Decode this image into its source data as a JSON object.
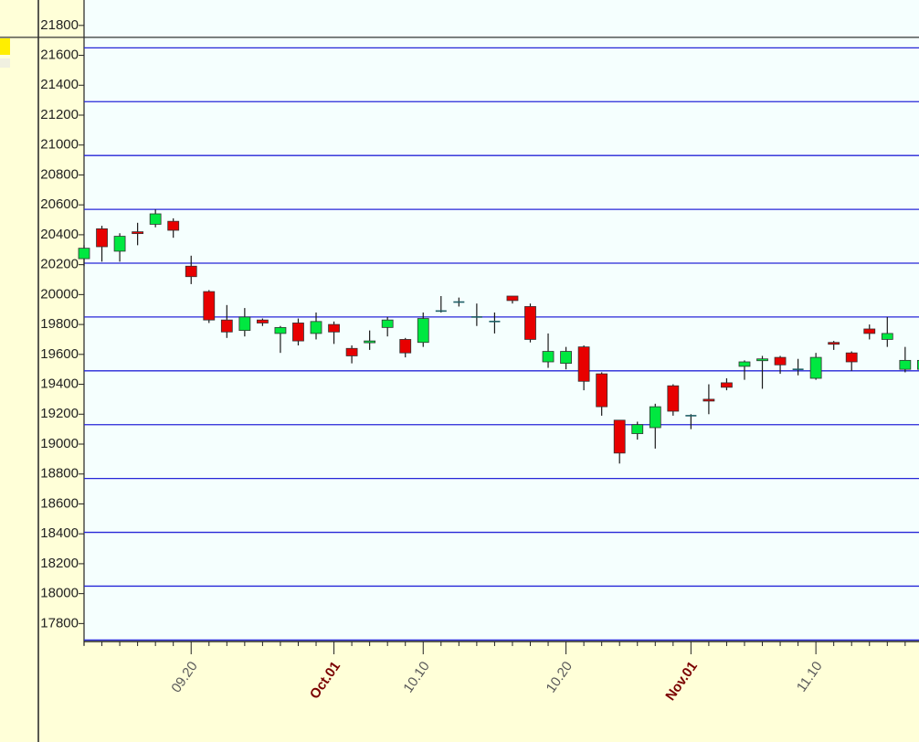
{
  "chart_data": {
    "type": "candlestick",
    "categories": [
      null,
      null,
      null,
      null,
      null,
      null,
      "09.20",
      null,
      null,
      null,
      null,
      null,
      null,
      null,
      "Oct.01",
      null,
      null,
      null,
      null,
      "10.10",
      null,
      null,
      null,
      null,
      null,
      null,
      null,
      "10.20",
      null,
      null,
      null,
      null,
      null,
      null,
      "Nov.01",
      null,
      null,
      null,
      null,
      null,
      null,
      "11.10",
      null,
      null,
      null,
      null,
      null,
      null
    ],
    "category_colors": [
      null,
      null,
      null,
      null,
      null,
      null,
      "#5a5a5a",
      null,
      null,
      null,
      null,
      null,
      null,
      null,
      "#7a0000",
      null,
      null,
      null,
      null,
      "#5a5a5a",
      null,
      null,
      null,
      null,
      null,
      null,
      null,
      "#5a5a5a",
      null,
      null,
      null,
      null,
      null,
      null,
      "#7a0000",
      null,
      null,
      null,
      null,
      null,
      null,
      "#5a5a5a",
      null,
      null,
      null,
      null,
      null,
      null
    ],
    "open": [
      20240,
      20440,
      20290,
      20420,
      20470,
      20490,
      20190,
      20020,
      19830,
      19760,
      19830,
      19740,
      19810,
      19740,
      19800,
      19640,
      19680,
      19780,
      19700,
      19680,
      19890,
      19950,
      19850,
      19820,
      19990,
      19920,
      19550,
      19540,
      19650,
      19470,
      19160,
      19070,
      19110,
      19390,
      19190,
      19300,
      19410,
      19520,
      19560,
      19580,
      19500,
      19440,
      19680,
      19610,
      19770,
      19700,
      19500,
      19500
    ],
    "high": [
      20330,
      20460,
      20410,
      20480,
      20570,
      20510,
      20260,
      20030,
      19930,
      19910,
      19840,
      19790,
      19840,
      19880,
      19820,
      19660,
      19760,
      19850,
      19710,
      19880,
      19990,
      19980,
      19940,
      19880,
      19990,
      19940,
      19740,
      19650,
      19660,
      19480,
      19160,
      19150,
      19270,
      19400,
      19200,
      19400,
      19440,
      19560,
      19590,
      19590,
      19570,
      19610,
      19690,
      19620,
      19800,
      19850,
      19650,
      19570
    ],
    "low": [
      20190,
      20220,
      20220,
      20330,
      20450,
      20380,
      20070,
      19810,
      19710,
      19720,
      19790,
      19610,
      19660,
      19700,
      19670,
      19540,
      19630,
      19720,
      19580,
      19650,
      19880,
      19920,
      19790,
      19740,
      19940,
      19680,
      19510,
      19500,
      19360,
      19190,
      18870,
      19030,
      18970,
      19190,
      19100,
      19200,
      19360,
      19430,
      19370,
      19470,
      19460,
      19430,
      19630,
      19490,
      19700,
      19650,
      19480,
      19480
    ],
    "close": [
      20310,
      20320,
      20390,
      20410,
      20540,
      20430,
      20120,
      19830,
      19750,
      19850,
      19810,
      19780,
      19690,
      19820,
      19750,
      19590,
      19690,
      19830,
      19610,
      19840,
      19890,
      19950,
      19850,
      19820,
      19960,
      19700,
      19620,
      19620,
      19420,
      19250,
      18940,
      19130,
      19250,
      19220,
      19190,
      19290,
      19380,
      19550,
      19570,
      19530,
      19500,
      19580,
      19670,
      19550,
      19740,
      19740,
      19560,
      19560
    ],
    "up_color": "#00e840",
    "down_color": "#e80000",
    "doji_color": "#1e5f66",
    "levels": [
      21650,
      21290,
      20930,
      20570,
      20210,
      19850,
      19490,
      19130,
      18770,
      18410,
      18050,
      17690
    ],
    "level_color": "#2626d8",
    "price_line": 21720,
    "price_line_color": "#333333",
    "ylim": [
      17680,
      21970
    ],
    "yticks": [
      17800,
      18000,
      18200,
      18400,
      18600,
      18800,
      19000,
      19200,
      19400,
      19600,
      19800,
      20000,
      20200,
      20400,
      20600,
      20800,
      21000,
      21200,
      21400,
      21600,
      21800
    ]
  }
}
